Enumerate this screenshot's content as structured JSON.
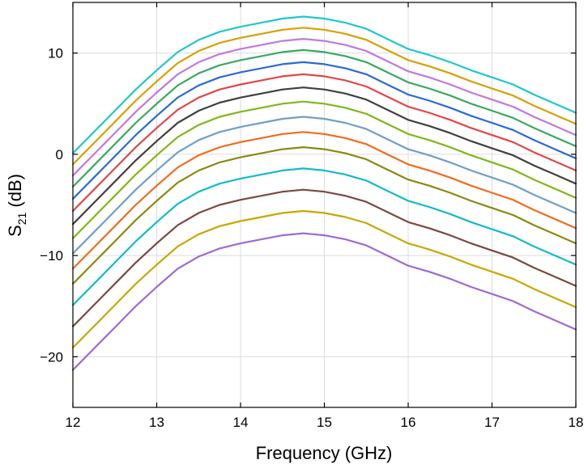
{
  "chart_data": {
    "type": "line",
    "title": "",
    "xlabel": "Frequency (GHz)",
    "ylabel_main": "S",
    "ylabel_sub": "21",
    "ylabel_unit": " (dB)",
    "xlim": [
      12,
      18
    ],
    "ylim": [
      -25,
      15
    ],
    "xticks": [
      12,
      13,
      14,
      15,
      16,
      17,
      18
    ],
    "yticks": [
      -20,
      -10,
      0,
      10
    ],
    "xtick_labels": [
      "12",
      "13",
      "14",
      "15",
      "16",
      "17",
      "18"
    ],
    "ytick_labels": [
      "−20",
      "−10",
      "0",
      "10"
    ],
    "grid": true,
    "x": [
      12,
      12.25,
      12.5,
      12.75,
      13,
      13.25,
      13.5,
      13.75,
      14,
      14.25,
      14.5,
      14.75,
      15,
      15.25,
      15.5,
      15.75,
      16,
      16.25,
      16.5,
      16.75,
      17,
      17.25,
      17.5,
      17.75,
      18
    ],
    "series": [
      {
        "color": "#9f6ad2",
        "values": [
          -21.3,
          -19.2,
          -17.1,
          -15.0,
          -13.1,
          -11.3,
          -10.1,
          -9.3,
          -8.8,
          -8.4,
          -8.0,
          -7.8,
          -8.0,
          -8.4,
          -9.0,
          -10.0,
          -11.0,
          -11.6,
          -12.3,
          -13.1,
          -13.8,
          -14.5,
          -15.5,
          -16.4,
          -17.3
        ]
      },
      {
        "color": "#c8a800",
        "values": [
          -19.1,
          -17.0,
          -14.9,
          -12.8,
          -10.9,
          -9.1,
          -7.9,
          -7.1,
          -6.6,
          -6.2,
          -5.8,
          -5.6,
          -5.8,
          -6.2,
          -6.8,
          -7.8,
          -8.8,
          -9.4,
          -10.1,
          -10.9,
          -11.6,
          -12.3,
          -13.3,
          -14.2,
          -15.1
        ]
      },
      {
        "color": "#7a4a40",
        "values": [
          -17.0,
          -14.9,
          -12.8,
          -10.7,
          -8.8,
          -7.0,
          -5.8,
          -5.0,
          -4.5,
          -4.1,
          -3.7,
          -3.5,
          -3.7,
          -4.1,
          -4.7,
          -5.7,
          -6.7,
          -7.3,
          -8.0,
          -8.8,
          -9.5,
          -10.2,
          -11.2,
          -12.1,
          -13.0
        ]
      },
      {
        "color": "#10bcc8",
        "values": [
          -14.9,
          -12.8,
          -10.7,
          -8.6,
          -6.7,
          -4.9,
          -3.7,
          -2.9,
          -2.4,
          -2.0,
          -1.6,
          -1.4,
          -1.6,
          -2.0,
          -2.6,
          -3.6,
          -4.6,
          -5.2,
          -5.9,
          -6.7,
          -7.4,
          -8.1,
          -9.1,
          -10.0,
          -10.9
        ]
      },
      {
        "color": "#8a8a10",
        "values": [
          -12.8,
          -10.7,
          -8.6,
          -6.5,
          -4.6,
          -2.8,
          -1.6,
          -0.8,
          -0.3,
          0.1,
          0.5,
          0.7,
          0.5,
          0.1,
          -0.5,
          -1.5,
          -2.5,
          -3.1,
          -3.8,
          -4.6,
          -5.3,
          -6.0,
          -7.0,
          -7.9,
          -8.8
        ]
      },
      {
        "color": "#f26b1c",
        "values": [
          -11.3,
          -9.2,
          -7.1,
          -5.0,
          -3.1,
          -1.3,
          -0.1,
          0.7,
          1.2,
          1.6,
          2.0,
          2.2,
          2.0,
          1.6,
          1.0,
          0.0,
          -1.0,
          -1.6,
          -2.3,
          -3.1,
          -3.8,
          -4.5,
          -5.5,
          -6.4,
          -7.3
        ]
      },
      {
        "color": "#6f9fc8",
        "values": [
          -9.8,
          -7.7,
          -5.6,
          -3.5,
          -1.6,
          0.2,
          1.4,
          2.2,
          2.7,
          3.1,
          3.5,
          3.7,
          3.5,
          3.1,
          2.5,
          1.5,
          0.5,
          -0.1,
          -0.8,
          -1.6,
          -2.3,
          -3.0,
          -4.0,
          -4.9,
          -5.8
        ]
      },
      {
        "color": "#80b818",
        "values": [
          -8.3,
          -6.2,
          -4.1,
          -2.0,
          -0.1,
          1.7,
          2.9,
          3.7,
          4.2,
          4.6,
          5.0,
          5.2,
          5.0,
          4.6,
          4.0,
          3.0,
          2.0,
          1.4,
          0.7,
          -0.1,
          -0.8,
          -1.5,
          -2.5,
          -3.4,
          -4.3
        ]
      },
      {
        "color": "#404040",
        "values": [
          -6.9,
          -4.8,
          -2.7,
          -0.6,
          1.3,
          3.1,
          4.3,
          5.1,
          5.6,
          6.0,
          6.4,
          6.6,
          6.4,
          6.0,
          5.4,
          4.4,
          3.4,
          2.8,
          2.1,
          1.3,
          0.6,
          -0.1,
          -1.1,
          -2.0,
          -2.9
        ]
      },
      {
        "color": "#e04848",
        "values": [
          -5.6,
          -3.5,
          -1.4,
          0.7,
          2.6,
          4.4,
          5.6,
          6.4,
          6.9,
          7.3,
          7.7,
          7.9,
          7.7,
          7.3,
          6.7,
          5.7,
          4.7,
          4.1,
          3.4,
          2.6,
          1.9,
          1.2,
          0.2,
          -0.7,
          -1.6
        ]
      },
      {
        "color": "#2a6ad8",
        "values": [
          -4.4,
          -2.3,
          -0.2,
          1.9,
          3.8,
          5.6,
          6.8,
          7.6,
          8.1,
          8.5,
          8.9,
          9.1,
          8.9,
          8.5,
          7.9,
          6.9,
          5.9,
          5.3,
          4.6,
          3.8,
          3.1,
          2.4,
          1.4,
          0.5,
          -0.4
        ]
      },
      {
        "color": "#3aa860",
        "values": [
          -3.2,
          -1.1,
          1.0,
          3.1,
          5.0,
          6.8,
          8.0,
          8.8,
          9.3,
          9.7,
          10.1,
          10.3,
          10.1,
          9.7,
          9.1,
          8.1,
          7.1,
          6.5,
          5.8,
          5.0,
          4.3,
          3.6,
          2.6,
          1.7,
          0.8
        ]
      },
      {
        "color": "#c078e0",
        "values": [
          -2.1,
          0.0,
          2.1,
          4.2,
          6.1,
          7.9,
          9.1,
          9.9,
          10.4,
          10.8,
          11.2,
          11.4,
          11.2,
          10.8,
          10.2,
          9.2,
          8.2,
          7.6,
          6.9,
          6.1,
          5.4,
          4.7,
          3.7,
          2.8,
          1.9
        ]
      },
      {
        "color": "#d8a000",
        "values": [
          -1.0,
          1.1,
          3.2,
          5.3,
          7.2,
          9.0,
          10.2,
          11.0,
          11.5,
          11.9,
          12.3,
          12.5,
          12.3,
          11.9,
          11.3,
          10.3,
          9.3,
          8.7,
          8.0,
          7.2,
          6.5,
          5.8,
          4.8,
          3.9,
          3.0
        ]
      },
      {
        "color": "#20c8c8",
        "values": [
          0.1,
          2.2,
          4.3,
          6.4,
          8.3,
          10.1,
          11.3,
          12.1,
          12.6,
          13.0,
          13.4,
          13.6,
          13.4,
          13.0,
          12.4,
          11.4,
          10.4,
          9.8,
          9.1,
          8.3,
          7.6,
          6.9,
          5.9,
          5.0,
          4.1
        ]
      }
    ]
  }
}
